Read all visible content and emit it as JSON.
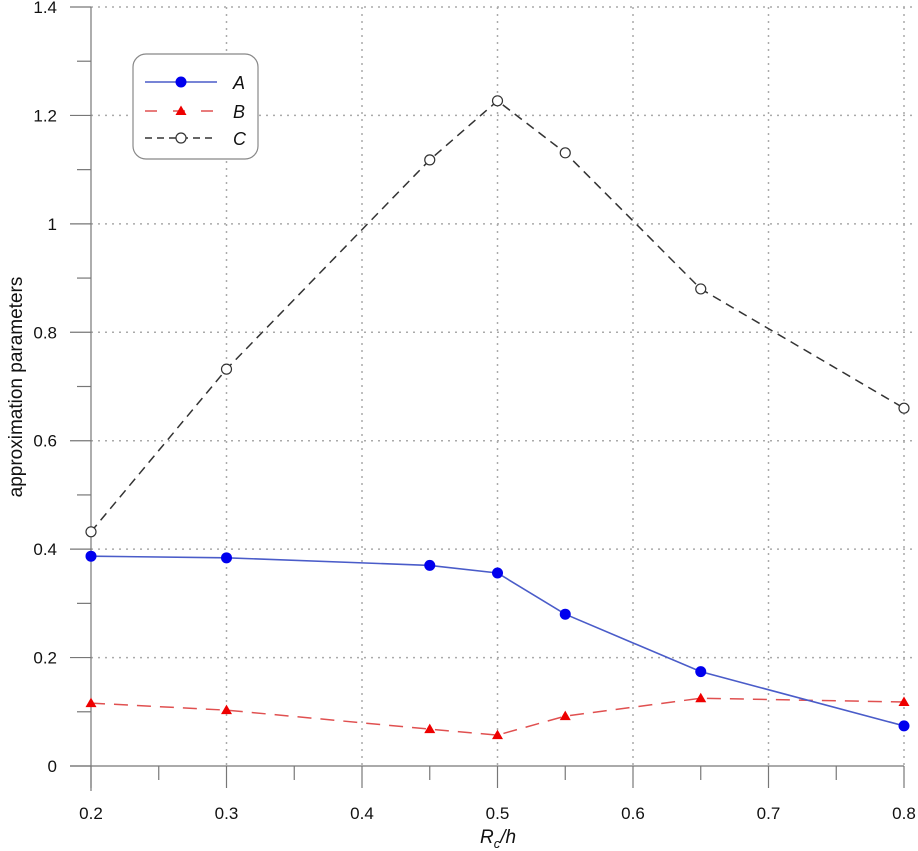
{
  "chart_data": {
    "type": "line",
    "title": "",
    "xlabel": "R_c/h",
    "xlabel_parts": {
      "main": "R",
      "sub": "c",
      "rest": "/h"
    },
    "ylabel": "approximation parameters",
    "xlim": [
      0.2,
      0.8
    ],
    "ylim": [
      0,
      1.4
    ],
    "x_ticks": [
      "0.2",
      "0.3",
      "0.4",
      "0.5",
      "0.6",
      "0.7",
      "0.8"
    ],
    "x_tick_values": [
      0.2,
      0.3,
      0.4,
      0.5,
      0.6,
      0.7,
      0.8
    ],
    "x_minor_ticks": [
      0.25,
      0.35,
      0.45,
      0.55,
      0.65,
      0.75
    ],
    "y_ticks": [
      "0",
      "0.2",
      "0.4",
      "0.6",
      "0.8",
      "1",
      "1.2",
      "1.4"
    ],
    "y_tick_values": [
      0,
      0.2,
      0.4,
      0.6,
      0.8,
      1.0,
      1.2,
      1.4
    ],
    "y_minor_ticks": [
      0.1,
      0.3,
      0.5,
      0.7,
      0.9,
      1.1,
      1.3
    ],
    "grid": true,
    "legend_position": "upper left",
    "x": [
      0.2,
      0.3,
      0.45,
      0.5,
      0.55,
      0.65,
      0.8
    ],
    "series": [
      {
        "name": "A",
        "color": "#0000ee",
        "line_color": "#4a5cc9",
        "line_style": "solid",
        "marker": "filled-circle",
        "values": [
          0.387,
          0.384,
          0.37,
          0.356,
          0.28,
          0.174,
          0.074
        ]
      },
      {
        "name": "B",
        "color": "#ee0000",
        "line_color": "#e05050",
        "line_style": "long-dash",
        "marker": "filled-triangle",
        "values": [
          0.116,
          0.103,
          0.068,
          0.057,
          0.092,
          0.125,
          0.118
        ]
      },
      {
        "name": "C",
        "color": "#333333",
        "line_color": "#333333",
        "line_style": "dash",
        "marker": "open-circle",
        "values": [
          0.432,
          0.732,
          1.118,
          1.227,
          1.131,
          0.88,
          0.66
        ]
      }
    ]
  }
}
